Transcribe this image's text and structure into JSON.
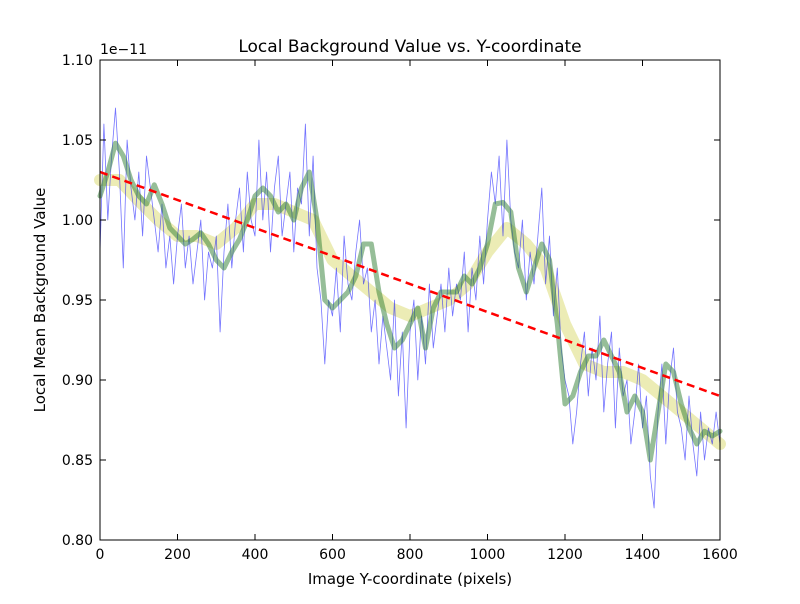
{
  "chart_data": {
    "type": "line",
    "title": "Local Background Value vs. Y-coordinate",
    "xlabel": "Image Y-coordinate (pixels)",
    "ylabel": "Local Mean Background Value",
    "offset_label": "1e−11",
    "xlim": [
      0,
      1600
    ],
    "ylim": [
      0.8,
      1.1
    ],
    "xticks": [
      0,
      200,
      400,
      600,
      800,
      1000,
      1200,
      1400,
      1600
    ],
    "yticks": [
      0.8,
      0.85,
      0.9,
      0.95,
      1.0,
      1.05,
      1.1
    ],
    "grid": false,
    "series": [
      {
        "kind": "raw",
        "color": "#0000ff",
        "x": [
          0,
          10,
          20,
          30,
          40,
          50,
          60,
          70,
          80,
          90,
          100,
          110,
          120,
          130,
          140,
          150,
          160,
          170,
          180,
          190,
          200,
          210,
          220,
          230,
          240,
          250,
          260,
          270,
          280,
          290,
          300,
          310,
          320,
          330,
          340,
          350,
          360,
          370,
          380,
          390,
          400,
          410,
          420,
          430,
          440,
          450,
          460,
          470,
          480,
          490,
          500,
          510,
          520,
          530,
          540,
          550,
          560,
          570,
          580,
          590,
          600,
          610,
          620,
          630,
          640,
          650,
          660,
          670,
          680,
          690,
          700,
          710,
          720,
          730,
          740,
          750,
          760,
          770,
          780,
          790,
          800,
          810,
          820,
          830,
          840,
          850,
          860,
          870,
          880,
          890,
          900,
          910,
          920,
          930,
          940,
          950,
          960,
          970,
          980,
          990,
          1000,
          1010,
          1020,
          1030,
          1040,
          1050,
          1060,
          1070,
          1080,
          1090,
          1100,
          1110,
          1120,
          1130,
          1140,
          1150,
          1160,
          1170,
          1180,
          1190,
          1200,
          1210,
          1220,
          1230,
          1240,
          1250,
          1260,
          1270,
          1280,
          1290,
          1300,
          1310,
          1320,
          1330,
          1340,
          1350,
          1360,
          1370,
          1380,
          1390,
          1400,
          1410,
          1420,
          1430,
          1440,
          1450,
          1460,
          1470,
          1480,
          1490,
          1500,
          1510,
          1520,
          1530,
          1540,
          1550,
          1560,
          1570,
          1580,
          1590,
          1600
        ],
        "y": [
          0.98,
          1.06,
          1.0,
          1.04,
          1.07,
          1.03,
          0.97,
          1.05,
          1.02,
          1.0,
          1.03,
          0.99,
          1.04,
          1.02,
          1.0,
          0.98,
          1.01,
          0.97,
          0.99,
          0.96,
          0.99,
          1.01,
          0.97,
          0.99,
          0.96,
          0.98,
          1.0,
          0.95,
          0.98,
          0.97,
          0.99,
          0.93,
          0.98,
          1.01,
          0.97,
          1.0,
          1.02,
          0.98,
          1.03,
          1.0,
          0.99,
          1.05,
          1.0,
          1.03,
          0.98,
          1.02,
          1.04,
          0.99,
          1.01,
          1.03,
          0.98,
          1.02,
          1.01,
          1.06,
          0.99,
          1.04,
          0.97,
          0.95,
          0.91,
          0.95,
          0.94,
          0.97,
          0.93,
          0.99,
          0.96,
          0.95,
          0.98,
          1.0,
          0.96,
          0.97,
          0.93,
          0.95,
          0.91,
          0.94,
          0.92,
          0.9,
          0.95,
          0.89,
          0.93,
          0.87,
          0.93,
          0.95,
          0.9,
          0.94,
          0.91,
          0.96,
          0.92,
          0.94,
          0.96,
          0.93,
          0.97,
          0.94,
          0.96,
          0.95,
          0.98,
          0.93,
          0.97,
          0.95,
          0.99,
          0.96,
          1.0,
          1.03,
          1.01,
          1.04,
          0.99,
          1.05,
          1.0,
          0.98,
          0.97,
          1.0,
          0.95,
          0.98,
          0.96,
          0.99,
          1.02,
          0.96,
          0.99,
          0.94,
          0.97,
          0.92,
          0.9,
          0.89,
          0.86,
          0.88,
          0.91,
          0.93,
          0.89,
          0.92,
          0.9,
          0.94,
          0.88,
          0.91,
          0.93,
          0.87,
          0.92,
          0.89,
          0.9,
          0.86,
          0.88,
          0.91,
          0.87,
          0.89,
          0.84,
          0.82,
          0.88,
          0.91,
          0.86,
          0.9,
          0.92,
          0.88,
          0.87,
          0.85,
          0.89,
          0.86,
          0.84,
          0.88,
          0.85,
          0.87,
          0.86,
          0.88,
          0.86
        ]
      },
      {
        "kind": "smoothed",
        "color": "#2e7d32",
        "x": [
          0,
          20,
          40,
          60,
          80,
          100,
          120,
          140,
          160,
          180,
          200,
          220,
          240,
          260,
          280,
          300,
          320,
          340,
          360,
          380,
          400,
          420,
          440,
          460,
          480,
          500,
          520,
          540,
          560,
          580,
          600,
          620,
          640,
          660,
          680,
          700,
          720,
          740,
          760,
          780,
          800,
          820,
          840,
          860,
          880,
          900,
          920,
          940,
          960,
          980,
          1000,
          1020,
          1040,
          1060,
          1080,
          1100,
          1120,
          1140,
          1160,
          1180,
          1200,
          1220,
          1240,
          1260,
          1280,
          1300,
          1320,
          1340,
          1360,
          1380,
          1400,
          1420,
          1440,
          1460,
          1480,
          1500,
          1520,
          1540,
          1560,
          1580,
          1600
        ],
        "y": [
          1.015,
          1.03,
          1.048,
          1.04,
          1.025,
          1.015,
          1.01,
          1.022,
          1.01,
          0.995,
          0.99,
          0.985,
          0.988,
          0.992,
          0.985,
          0.975,
          0.97,
          0.98,
          0.988,
          1.0,
          1.015,
          1.02,
          1.015,
          1.005,
          1.01,
          1.0,
          1.02,
          1.03,
          1.0,
          0.95,
          0.945,
          0.95,
          0.955,
          0.965,
          0.985,
          0.985,
          0.955,
          0.935,
          0.92,
          0.925,
          0.935,
          0.945,
          0.92,
          0.945,
          0.955,
          0.955,
          0.955,
          0.965,
          0.96,
          0.97,
          0.985,
          1.01,
          1.011,
          1.005,
          0.97,
          0.955,
          0.97,
          0.985,
          0.975,
          0.935,
          0.885,
          0.89,
          0.905,
          0.915,
          0.915,
          0.925,
          0.915,
          0.905,
          0.88,
          0.89,
          0.88,
          0.85,
          0.88,
          0.91,
          0.905,
          0.885,
          0.87,
          0.86,
          0.868,
          0.865,
          0.868
        ]
      },
      {
        "kind": "smoothed-wide",
        "color": "#d4d45a",
        "x": [
          0,
          50,
          100,
          150,
          200,
          250,
          300,
          350,
          400,
          450,
          500,
          550,
          600,
          650,
          700,
          750,
          800,
          850,
          900,
          950,
          1000,
          1050,
          1100,
          1150,
          1200,
          1250,
          1300,
          1350,
          1400,
          1450,
          1500,
          1550,
          1600
        ],
        "y": [
          1.025,
          1.025,
          1.012,
          1.0,
          0.99,
          0.99,
          0.985,
          0.995,
          1.01,
          1.01,
          1.005,
          1.0,
          0.975,
          0.965,
          0.955,
          0.945,
          0.94,
          0.945,
          0.95,
          0.96,
          0.98,
          0.995,
          0.985,
          0.97,
          0.935,
          0.91,
          0.905,
          0.905,
          0.9,
          0.89,
          0.88,
          0.87,
          0.86
        ]
      },
      {
        "kind": "fit",
        "color": "#ff0000",
        "style": "dashed",
        "x": [
          0,
          1600
        ],
        "y": [
          1.03,
          0.89
        ]
      }
    ]
  }
}
